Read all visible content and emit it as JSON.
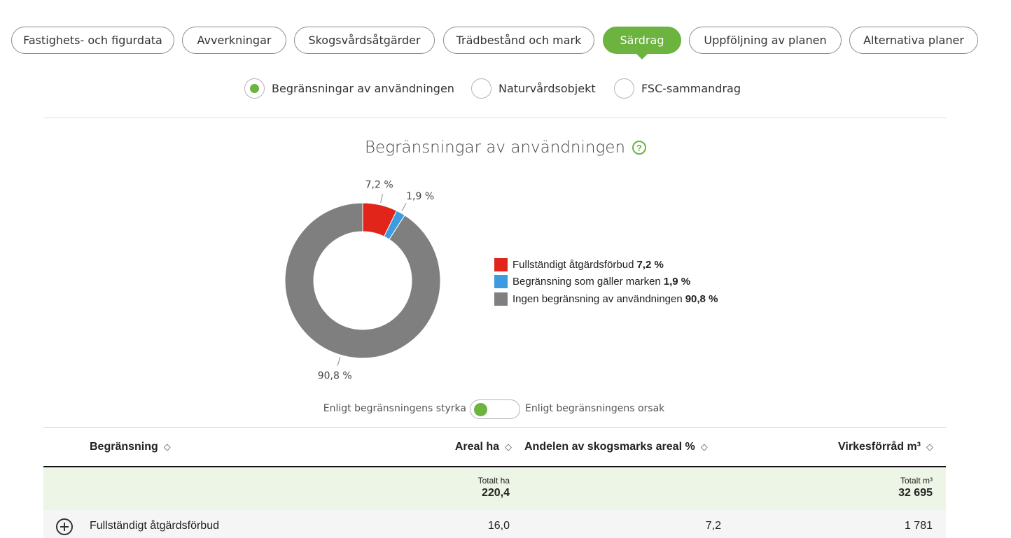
{
  "tabs": [
    {
      "label": "Fastighets- och figurdata"
    },
    {
      "label": "Avverkningar"
    },
    {
      "label": "Skogsvårdsåtgärder"
    },
    {
      "label": "Trädbestånd och mark"
    },
    {
      "label": "Särdrag",
      "active": true
    },
    {
      "label": "Uppföljning av planen"
    },
    {
      "label": "Alternativa planer"
    }
  ],
  "subview": {
    "options": [
      {
        "label": "Begränsningar av användningen",
        "selected": true
      },
      {
        "label": "Naturvårdsobjekt",
        "selected": false
      },
      {
        "label": "FSC-sammandrag",
        "selected": false
      }
    ]
  },
  "chart": {
    "title": "Begränsningar av användningen",
    "help_icon": "question-circle-icon"
  },
  "chart_data": {
    "type": "pie",
    "donut": true,
    "title": "Begränsningar av användningen",
    "slices": [
      {
        "name": "Fullständigt åtgärdsförbud",
        "value": 7.2,
        "label": "7,2 %",
        "legend_value": "7,2 %",
        "color": "#e1251b"
      },
      {
        "name": "Begränsning som gäller marken",
        "value": 1.9,
        "label": "1,9 %",
        "legend_value": "1,9 %",
        "color": "#3d9be0"
      },
      {
        "name": "Ingen begränsning av användningen",
        "value": 90.8,
        "label": "90,8 %",
        "legend_value": "90,8 %",
        "color": "#7f7f7f"
      }
    ],
    "legend_position": "right"
  },
  "toggle": {
    "left_label": "Enligt begränsningens styrka",
    "right_label": "Enligt begränsningens orsak",
    "state": "left"
  },
  "table": {
    "columns": {
      "restriction": "Begränsning",
      "area": "Areal ha",
      "share": "Andelen av skogsmarks areal %",
      "volume": "Virkesförråd m³"
    },
    "totals": {
      "area_label": "Totalt ha",
      "area_value": "220,4",
      "volume_label": "Totalt m³",
      "volume_value": "32 695"
    },
    "rows": [
      {
        "name": "Fullständigt åtgärdsförbud",
        "area": "16,0",
        "share": "7,2",
        "volume": "1 781"
      }
    ]
  },
  "colors": {
    "accent": "#6cb33f",
    "total_row_bg": "#edf5e6"
  }
}
